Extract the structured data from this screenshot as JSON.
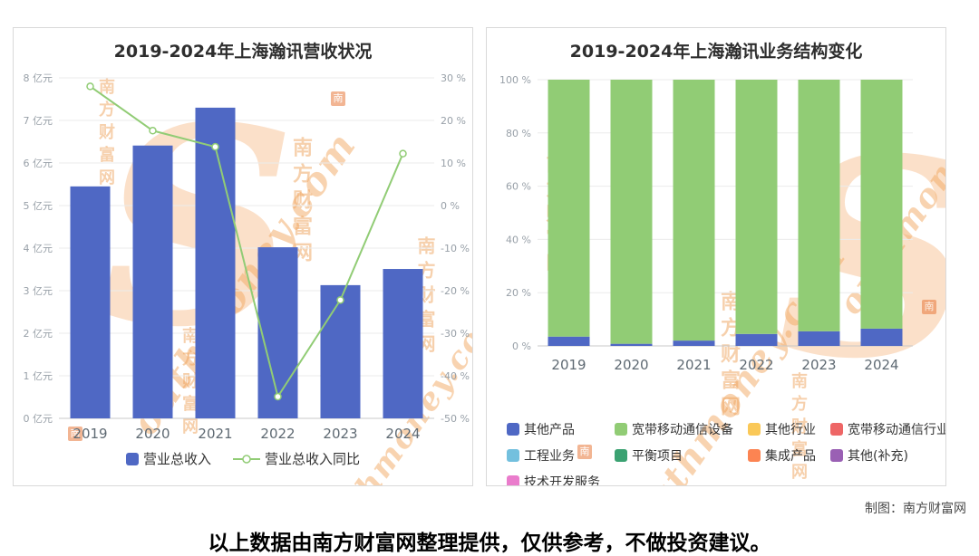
{
  "page": {
    "credit": "制图：南方财富网",
    "disclaimer": "以上数据由南方财富网整理提供，仅供参考，不做投资建议。"
  },
  "watermark": {
    "logo_letter": "S",
    "en": "outhmoney.com",
    "cn": "南方财富网",
    "stamp": "南",
    "color": "#f2a963"
  },
  "chart_data": [
    {
      "id": "revenue",
      "type": "bar",
      "title": "2019-2024年上海瀚讯营收状况",
      "categories": [
        "2019",
        "2020",
        "2021",
        "2022",
        "2023",
        "2024"
      ],
      "series": [
        {
          "name": "营业总收入",
          "type": "bar",
          "axis": "left",
          "unit": "亿元",
          "color": "#4f68c4",
          "values": [
            5.45,
            6.41,
            7.3,
            4.02,
            3.13,
            3.51
          ]
        },
        {
          "name": "营业总收入同比",
          "type": "line",
          "axis": "right",
          "unit": "%",
          "color": "#91cc75",
          "values": [
            28.0,
            17.6,
            13.8,
            -44.9,
            -22.2,
            12.2
          ]
        }
      ],
      "left_axis": {
        "min": 0,
        "max": 8,
        "step": 1,
        "suffix": " 亿元"
      },
      "right_axis": {
        "min": -50,
        "max": 30,
        "step": 10,
        "suffix": " %"
      },
      "grid": true,
      "legend_position": "bottom"
    },
    {
      "id": "structure",
      "type": "stacked_bar",
      "title": "2019-2024年上海瀚讯业务结构变化",
      "categories": [
        "2019",
        "2020",
        "2021",
        "2022",
        "2023",
        "2024"
      ],
      "y_axis": {
        "min": 0,
        "max": 100,
        "step": 20,
        "suffix": " %"
      },
      "series": [
        {
          "name": "其他产品",
          "color": "#4f68c4",
          "values": [
            3.5,
            0.8,
            2.0,
            4.5,
            5.5,
            6.5
          ]
        },
        {
          "name": "宽带移动通信设备",
          "color": "#91cc75",
          "values": [
            96.5,
            99.2,
            98.0,
            95.5,
            94.5,
            93.5
          ]
        },
        {
          "name": "其他行业",
          "color": "#fac858",
          "values": [
            0,
            0,
            0,
            0,
            0,
            0
          ]
        },
        {
          "name": "宽带移动通信行业",
          "color": "#ee6666",
          "values": [
            0,
            0,
            0,
            0,
            0,
            0
          ]
        },
        {
          "name": "工程业务",
          "color": "#73c0de",
          "values": [
            0,
            0,
            0,
            0,
            0,
            0
          ]
        },
        {
          "name": "平衡项目",
          "color": "#3ba272",
          "values": [
            0,
            0,
            0,
            0,
            0,
            0
          ]
        },
        {
          "name": "集成产品",
          "color": "#fc8452",
          "values": [
            0,
            0,
            0,
            0,
            0,
            0
          ]
        },
        {
          "name": "其他(补充)",
          "color": "#9a60b4",
          "values": [
            0,
            0,
            0,
            0,
            0,
            0
          ]
        },
        {
          "name": "技术开发服务",
          "color": "#ea7ccc",
          "values": [
            0,
            0,
            0,
            0,
            0,
            0
          ]
        }
      ],
      "grid": true,
      "legend_position": "bottom"
    }
  ]
}
